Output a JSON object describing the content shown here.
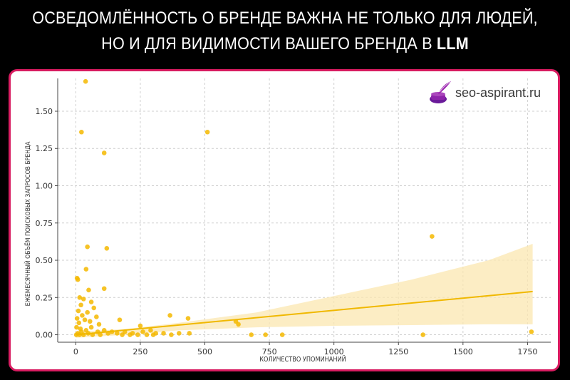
{
  "headline": {
    "line1": "ОСВЕДОМЛЁННОСТЬ О БРЕНДЕ ВАЖНА НЕ ТОЛЬКО ДЛЯ ЛЮДЕЙ,",
    "line2_prefix": "НО И ДЛЯ ВИДИМОСТИ ВАШЕГО БРЕНДА В ",
    "line2_accent": "LLM"
  },
  "logo": {
    "text": "seo-aspirant.ru",
    "icon": "inkwell-quill-icon",
    "color": "#7b1fa2"
  },
  "colors": {
    "points": "#f5b800",
    "trend": "#f0b800",
    "band": "#fbe7b0",
    "frame": "#d81b60",
    "background": "#000000"
  },
  "chart_data": {
    "type": "scatter",
    "title": "",
    "xlabel": "КОЛИЧЕСТВО УПОМИНАНИЙ",
    "ylabel": "ЕЖЕМЕСЯЧНЫЙ ОБЪЁМ ПОИСКОВЫХ ЗАПРОСОВ БРЕНДА",
    "xlim": [
      -70,
      1840
    ],
    "ylim": [
      -0.05,
      1.72
    ],
    "xticks": [
      0,
      250,
      500,
      750,
      1000,
      1250,
      1500,
      1750
    ],
    "yticks": [
      0.0,
      0.25,
      0.5,
      0.75,
      1.0,
      1.25,
      1.5
    ],
    "xtick_labels": [
      "0",
      "250",
      "500",
      "750",
      "1000",
      "1250",
      "1500",
      "1750"
    ],
    "ytick_labels": [
      "0.00",
      "0.25",
      "0.50",
      "0.75",
      "1.00",
      "1.25",
      "1.50"
    ],
    "grid": true,
    "points": [
      [
        38,
        1.7
      ],
      [
        22,
        1.36
      ],
      [
        110,
        1.22
      ],
      [
        510,
        1.36
      ],
      [
        45,
        0.59
      ],
      [
        120,
        0.58
      ],
      [
        1380,
        0.66
      ],
      [
        40,
        0.44
      ],
      [
        5,
        0.38
      ],
      [
        8,
        0.37
      ],
      [
        50,
        0.3
      ],
      [
        110,
        0.31
      ],
      [
        15,
        0.25
      ],
      [
        30,
        0.24
      ],
      [
        60,
        0.22
      ],
      [
        20,
        0.2
      ],
      [
        70,
        0.18
      ],
      [
        10,
        0.16
      ],
      [
        45,
        0.15
      ],
      [
        25,
        0.13
      ],
      [
        80,
        0.12
      ],
      [
        5,
        0.11
      ],
      [
        35,
        0.1
      ],
      [
        55,
        0.09
      ],
      [
        12,
        0.08
      ],
      [
        90,
        0.07
      ],
      [
        170,
        0.1
      ],
      [
        250,
        0.06
      ],
      [
        365,
        0.13
      ],
      [
        435,
        0.11
      ],
      [
        630,
        0.07
      ],
      [
        620,
        0.09
      ],
      [
        3,
        0.05
      ],
      [
        18,
        0.04
      ],
      [
        40,
        0.03
      ],
      [
        60,
        0.05
      ],
      [
        85,
        0.02
      ],
      [
        110,
        0.03
      ],
      [
        140,
        0.02
      ],
      [
        160,
        0.01
      ],
      [
        190,
        0.02
      ],
      [
        220,
        0.01
      ],
      [
        260,
        0.02
      ],
      [
        290,
        0.03
      ],
      [
        310,
        0.01
      ],
      [
        2,
        0.0
      ],
      [
        8,
        0.01
      ],
      [
        14,
        0.0
      ],
      [
        22,
        0.02
      ],
      [
        30,
        0.0
      ],
      [
        48,
        0.01
      ],
      [
        65,
        0.0
      ],
      [
        95,
        0.0
      ],
      [
        125,
        0.01
      ],
      [
        180,
        0.0
      ],
      [
        210,
        0.0
      ],
      [
        240,
        0.0
      ],
      [
        275,
        0.0
      ],
      [
        300,
        0.0
      ],
      [
        340,
        0.01
      ],
      [
        370,
        0.0
      ],
      [
        400,
        0.01
      ],
      [
        440,
        0.01
      ],
      [
        680,
        0.0
      ],
      [
        735,
        0.0
      ],
      [
        800,
        0.0
      ],
      [
        1345,
        0.0
      ],
      [
        1765,
        0.02
      ]
    ],
    "trend": {
      "x": [
        0,
        1770
      ],
      "y": [
        0.0,
        0.29
      ]
    },
    "confidence_band": {
      "x": [
        0,
        200,
        400,
        700,
        1000,
        1300,
        1600,
        1770
      ],
      "upper": [
        0.02,
        0.04,
        0.08,
        0.15,
        0.26,
        0.37,
        0.5,
        0.61
      ],
      "lower": [
        -0.02,
        0.0,
        0.03,
        0.05,
        0.06,
        0.065,
        0.07,
        0.07
      ]
    }
  }
}
